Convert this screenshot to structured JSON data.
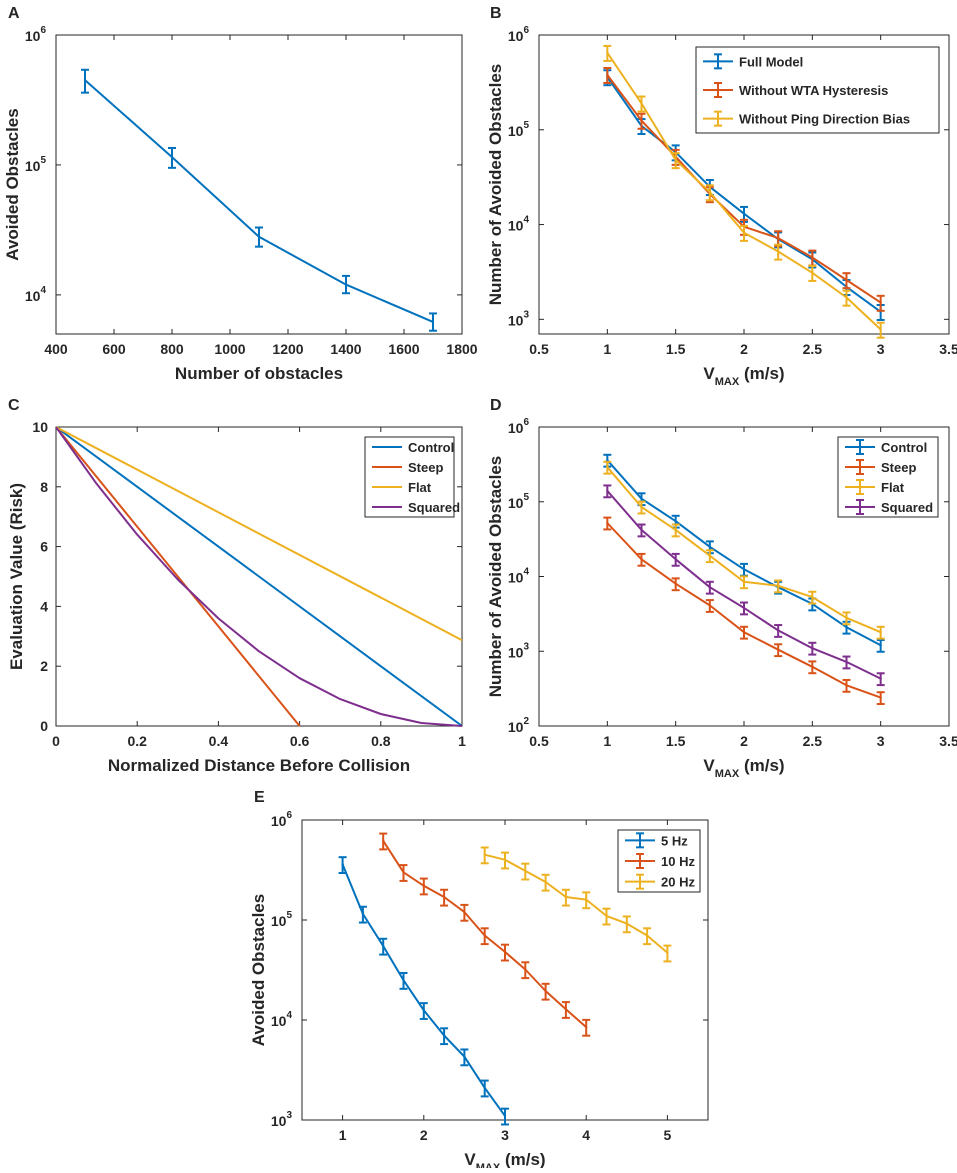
{
  "chart_data": [
    {
      "panel": "A",
      "type": "line",
      "yscale": "log",
      "xlabel": "Number of obstacles",
      "ylabel": "Avoided Obstacles",
      "xlim": [
        400,
        1800
      ],
      "ylim": [
        5000,
        1000000
      ],
      "xticks": [
        400,
        600,
        800,
        1000,
        1200,
        1400,
        1600,
        1800
      ],
      "xtick_labels": [
        "400",
        "600",
        "800",
        "1000",
        "1200",
        "1400",
        "1600",
        "1800"
      ],
      "yticks": [
        10000,
        100000,
        1000000
      ],
      "ytick_bases": [
        "10",
        "10",
        "10"
      ],
      "ytick_exps": [
        "4",
        "5",
        "6"
      ],
      "series": [
        {
          "name": "",
          "color": "#0072BD",
          "x": [
            500,
            800,
            1100,
            1400,
            1700
          ],
          "y": [
            450000,
            115000,
            28000,
            12000,
            6200
          ],
          "err_lo": [
            360000,
            95000,
            23500,
            10300,
            5300
          ],
          "err_hi": [
            540000,
            135000,
            33000,
            14000,
            7200
          ]
        }
      ]
    },
    {
      "panel": "B",
      "type": "line",
      "yscale": "log",
      "xlabel_main": "V",
      "xlabel_sub": "MAX",
      "xlabel_unit": " (m/s)",
      "ylabel": "Number of Avoided Obstacles",
      "xlim": [
        0.5,
        3.5
      ],
      "ylim": [
        700,
        1000000
      ],
      "xticks": [
        0.5,
        1,
        1.5,
        2,
        2.5,
        3,
        3.5
      ],
      "xtick_labels": [
        "0.5",
        "1",
        "1.5",
        "2",
        "2.5",
        "3",
        "3.5"
      ],
      "yticks": [
        1000,
        10000,
        100000,
        1000000
      ],
      "ytick_bases": [
        "10",
        "10",
        "10",
        "10"
      ],
      "ytick_exps": [
        "3",
        "4",
        "5",
        "6"
      ],
      "legend": "top-right",
      "series": [
        {
          "name": "Full Model",
          "color": "#0072BD",
          "x": [
            1,
            1.25,
            1.5,
            1.75,
            2,
            2.25,
            2.5,
            2.75,
            3
          ],
          "y": [
            360000,
            110000,
            58000,
            25000,
            13000,
            7000,
            4300,
            2200,
            1200
          ]
        },
        {
          "name": "Without WTA Hysteresis",
          "color": "#D95319",
          "x": [
            1,
            1.25,
            1.5,
            1.75,
            2,
            2.25,
            2.5,
            2.75,
            3
          ],
          "y": [
            380000,
            125000,
            52000,
            21000,
            9500,
            7200,
            4500,
            2600,
            1500
          ]
        },
        {
          "name": "Without Ping Direction Bias",
          "color": "#EDB120",
          "x": [
            1,
            1.25,
            1.5,
            1.75,
            2,
            2.25,
            2.5,
            2.75,
            3
          ],
          "y": [
            650000,
            190000,
            48000,
            22000,
            8200,
            5200,
            3100,
            1700,
            780
          ]
        }
      ]
    },
    {
      "panel": "C",
      "type": "line",
      "yscale": "linear",
      "xlabel": "Normalized Distance Before Collision",
      "ylabel": "Evaluation Value (Risk)",
      "xlim": [
        0,
        1
      ],
      "ylim": [
        0,
        10
      ],
      "xticks": [
        0,
        0.2,
        0.4,
        0.6,
        0.8,
        1
      ],
      "xtick_labels": [
        "0",
        "0.2",
        "0.4",
        "0.6",
        "0.8",
        "1"
      ],
      "yticks": [
        0,
        2,
        4,
        6,
        8,
        10
      ],
      "ytick_labels": [
        "0",
        "2",
        "4",
        "6",
        "8",
        "10"
      ],
      "legend": "top-right",
      "series": [
        {
          "name": "Control",
          "color": "#0072BD",
          "x": [
            0,
            1
          ],
          "y": [
            10,
            0
          ]
        },
        {
          "name": "Steep",
          "color": "#D95319",
          "x": [
            0,
            0.6
          ],
          "y": [
            10,
            0
          ]
        },
        {
          "name": "Flat",
          "color": "#EDB120",
          "x": [
            0,
            1
          ],
          "y": [
            10,
            2.87
          ]
        },
        {
          "name": "Squared",
          "color": "#7E2F8E",
          "x": [
            0,
            0.1,
            0.2,
            0.3,
            0.4,
            0.5,
            0.6,
            0.7,
            0.8,
            0.9,
            1
          ],
          "y": [
            10,
            8.1,
            6.4,
            4.9,
            3.6,
            2.5,
            1.6,
            0.9,
            0.4,
            0.1,
            0
          ]
        }
      ]
    },
    {
      "panel": "D",
      "type": "line",
      "yscale": "log",
      "xlabel_main": "V",
      "xlabel_sub": "MAX",
      "xlabel_unit": " (m/s)",
      "ylabel": "Number of Avoided Obstacles",
      "xlim": [
        0.5,
        3.5
      ],
      "ylim": [
        100,
        1000000
      ],
      "xticks": [
        0.5,
        1,
        1.5,
        2,
        2.5,
        3,
        3.5
      ],
      "xtick_labels": [
        "0.5",
        "1",
        "1.5",
        "2",
        "2.5",
        "3",
        "3.5"
      ],
      "yticks": [
        100,
        1000,
        10000,
        100000,
        1000000
      ],
      "ytick_bases": [
        "10",
        "10",
        "10",
        "10",
        "10"
      ],
      "ytick_exps": [
        "2",
        "3",
        "4",
        "5",
        "6"
      ],
      "legend": "top-right",
      "series": [
        {
          "name": "Control",
          "color": "#0072BD",
          "x": [
            1,
            1.25,
            1.5,
            1.75,
            2,
            2.25,
            2.5,
            2.75,
            3
          ],
          "y": [
            360000,
            110000,
            55000,
            25000,
            12500,
            7200,
            4300,
            2100,
            1200
          ]
        },
        {
          "name": "Steep",
          "color": "#D95319",
          "x": [
            1,
            1.25,
            1.5,
            1.75,
            2,
            2.25,
            2.5,
            2.75,
            3
          ],
          "y": [
            52000,
            17000,
            8000,
            4100,
            1800,
            1050,
            620,
            350,
            240
          ]
        },
        {
          "name": "Flat",
          "color": "#EDB120",
          "x": [
            1,
            1.25,
            1.5,
            1.75,
            2,
            2.25,
            2.5,
            2.75,
            3
          ],
          "y": [
            290000,
            85000,
            42000,
            19000,
            8500,
            7500,
            5300,
            2800,
            1800
          ]
        },
        {
          "name": "Squared",
          "color": "#7E2F8E",
          "x": [
            1,
            1.25,
            1.5,
            1.75,
            2,
            2.25,
            2.5,
            2.75,
            3
          ],
          "y": [
            140000,
            42000,
            17000,
            7200,
            3800,
            1900,
            1100,
            720,
            430
          ]
        }
      ]
    },
    {
      "panel": "E",
      "type": "line",
      "yscale": "log",
      "xlabel_main": "V",
      "xlabel_sub": "MAX",
      "xlabel_unit": " (m/s)",
      "ylabel": "Avoided Obstacles",
      "xlim": [
        0.5,
        5.5
      ],
      "ylim": [
        1000,
        1000000
      ],
      "xticks": [
        1,
        2,
        3,
        4,
        5
      ],
      "xtick_labels": [
        "1",
        "2",
        "3",
        "4",
        "5"
      ],
      "yticks": [
        1000,
        10000,
        100000,
        1000000
      ],
      "ytick_bases": [
        "10",
        "10",
        "10",
        "10"
      ],
      "ytick_exps": [
        "3",
        "4",
        "5",
        "6"
      ],
      "legend": "top-right",
      "series": [
        {
          "name": "5 Hz",
          "color": "#0072BD",
          "x": [
            1,
            1.25,
            1.5,
            1.75,
            2,
            2.25,
            2.5,
            2.75,
            3
          ],
          "y": [
            360000,
            115000,
            55000,
            25000,
            12500,
            7000,
            4300,
            2100,
            1100
          ]
        },
        {
          "name": "10 Hz",
          "color": "#D95319",
          "x": [
            1.5,
            1.75,
            2,
            2.25,
            2.5,
            2.75,
            3,
            3.25,
            3.5,
            3.75,
            4
          ],
          "y": [
            620000,
            300000,
            220000,
            170000,
            120000,
            70000,
            48000,
            32000,
            19500,
            12800,
            8500
          ]
        },
        {
          "name": "20 Hz",
          "color": "#EDB120",
          "x": [
            2.75,
            3,
            3.25,
            3.5,
            3.75,
            4,
            4.25,
            4.5,
            4.75,
            5
          ],
          "y": [
            450000,
            400000,
            310000,
            240000,
            170000,
            160000,
            110000,
            92000,
            70000,
            47000
          ]
        }
      ]
    }
  ]
}
